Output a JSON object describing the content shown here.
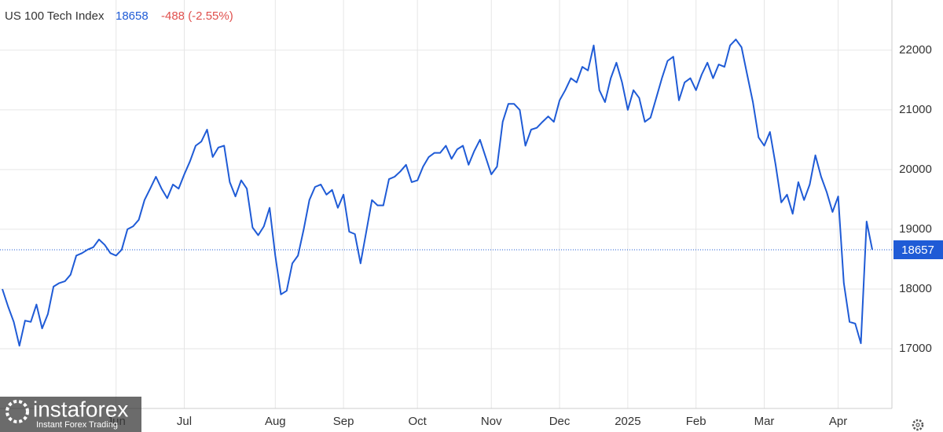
{
  "chart_data": {
    "type": "line",
    "title": "US 100 Tech Index",
    "price": 18658,
    "change": "-488 (-2.55%)",
    "last_value": 18657,
    "color": "#1f5bd6",
    "watermark": "instaforex",
    "watermark_sub": "Instant Forex Trading",
    "categories": [
      null,
      null,
      null,
      null,
      null,
      null,
      null,
      null,
      null,
      null,
      null,
      null,
      null,
      null,
      null,
      null,
      null,
      null,
      null,
      null,
      "Jun",
      null,
      null,
      null,
      null,
      null,
      null,
      null,
      null,
      null,
      null,
      null,
      "Jul",
      null,
      null,
      null,
      null,
      null,
      null,
      null,
      null,
      null,
      null,
      null,
      null,
      null,
      null,
      null,
      "Aug",
      null,
      null,
      null,
      null,
      null,
      null,
      null,
      null,
      null,
      null,
      null,
      "Sep",
      null,
      null,
      null,
      null,
      null,
      null,
      null,
      null,
      null,
      null,
      null,
      null,
      "Oct",
      null,
      null,
      null,
      null,
      null,
      null,
      null,
      null,
      null,
      null,
      null,
      null,
      "Nov",
      null,
      null,
      null,
      null,
      null,
      null,
      null,
      null,
      null,
      null,
      null,
      "Dec",
      null,
      null,
      null,
      null,
      null,
      null,
      null,
      null,
      null,
      null,
      null,
      "2025",
      null,
      null,
      null,
      null,
      null,
      null,
      null,
      null,
      null,
      null,
      null,
      "Feb",
      null,
      null,
      null,
      null,
      null,
      null,
      null,
      null,
      null,
      null,
      null,
      "Mar",
      null,
      null,
      null,
      null,
      null,
      null,
      null,
      null,
      null,
      null,
      null,
      null,
      "Apr",
      null,
      null,
      null,
      null,
      null,
      null
    ],
    "values": [
      18000,
      17710,
      17450,
      17050,
      17470,
      17450,
      17740,
      17340,
      17580,
      18040,
      18100,
      18130,
      18240,
      18560,
      18600,
      18660,
      18700,
      18830,
      18740,
      18600,
      18560,
      18660,
      19000,
      19050,
      19160,
      19490,
      19680,
      19880,
      19680,
      19520,
      19750,
      19680,
      19920,
      20140,
      20400,
      20470,
      20670,
      20210,
      20370,
      20400,
      19790,
      19550,
      19820,
      19680,
      19030,
      18900,
      19050,
      19360,
      18560,
      17910,
      17970,
      18430,
      18560,
      19000,
      19490,
      19710,
      19750,
      19580,
      19660,
      19360,
      19580,
      18960,
      18920,
      18430,
      18960,
      19490,
      19400,
      19400,
      19840,
      19880,
      19970,
      20080,
      19790,
      19820,
      20050,
      20210,
      20280,
      20280,
      20400,
      20180,
      20340,
      20400,
      20080,
      20310,
      20500,
      20210,
      19920,
      20050,
      20800,
      21100,
      21100,
      21000,
      20400,
      20670,
      20700,
      20800,
      20890,
      20800,
      21160,
      21330,
      21530,
      21460,
      21720,
      21660,
      22080,
      21330,
      21130,
      21530,
      21790,
      21460,
      21000,
      21330,
      21200,
      20800,
      20870,
      21200,
      21530,
      21820,
      21890,
      21160,
      21460,
      21530,
      21330,
      21590,
      21790,
      21530,
      21760,
      21720,
      22080,
      22180,
      22050,
      21590,
      21130,
      20540,
      20400,
      20630,
      20080,
      19450,
      19580,
      19260,
      19790,
      19490,
      19750,
      20240,
      19880,
      19620,
      19290,
      19550,
      18100,
      17450,
      17420,
      17090,
      19130,
      18660
    ],
    "ylim": [
      16000,
      22840
    ],
    "yticks": [
      17000,
      18000,
      19000,
      20000,
      21000,
      22000
    ],
    "grid": true
  }
}
